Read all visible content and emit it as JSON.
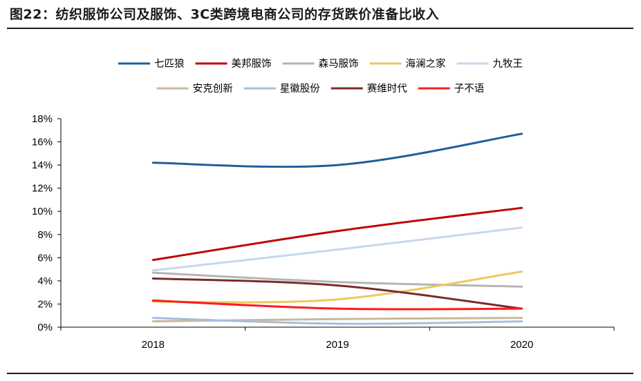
{
  "figure": {
    "title": "图22：纺织服饰公司及服饰、3C类跨境电商公司的存货跌价准备比收入"
  },
  "chart_data": {
    "type": "line",
    "categories": [
      "2018",
      "2019",
      "2020"
    ],
    "ylim": [
      0,
      18
    ],
    "yticks": [
      0,
      2,
      4,
      6,
      8,
      10,
      12,
      14,
      16,
      18
    ],
    "ytick_labels": [
      "0%",
      "2%",
      "4%",
      "6%",
      "8%",
      "10%",
      "12%",
      "14%",
      "16%",
      "18%"
    ],
    "xlabel": "",
    "ylabel": "",
    "legend_position": "top",
    "series": [
      {
        "name": "七匹狼",
        "values": [
          14.2,
          14.0,
          16.7
        ],
        "color": "#1f5f99"
      },
      {
        "name": "美邦服饰",
        "values": [
          5.8,
          8.3,
          10.3
        ],
        "color": "#c00000"
      },
      {
        "name": "森马服饰",
        "values": [
          4.7,
          3.9,
          3.5
        ],
        "color": "#b4b4b4"
      },
      {
        "name": "海澜之家",
        "values": [
          2.2,
          2.4,
          4.8
        ],
        "color": "#ecc860"
      },
      {
        "name": "九牧王",
        "values": [
          4.9,
          6.7,
          8.6
        ],
        "color": "#c7d7ec"
      },
      {
        "name": "安克创新",
        "values": [
          0.5,
          0.7,
          0.8
        ],
        "color": "#c8b99a"
      },
      {
        "name": "星徽股份",
        "values": [
          0.8,
          0.3,
          0.5
        ],
        "color": "#a6bedf"
      },
      {
        "name": "赛维时代",
        "values": [
          4.2,
          3.6,
          1.6
        ],
        "color": "#7b2a2a"
      },
      {
        "name": "子不语",
        "values": [
          2.3,
          1.6,
          1.6
        ],
        "color": "#ff1a1a"
      }
    ]
  }
}
